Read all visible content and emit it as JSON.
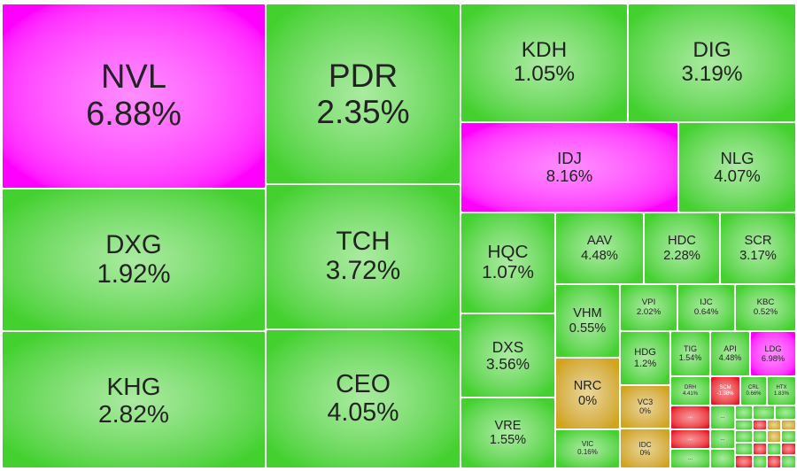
{
  "tiles": [
    {
      "symbol": "NVL",
      "change": "6.88%",
      "color": "#ff00ff"
    },
    {
      "symbol": "PDR",
      "change": "2.35%",
      "color": "#44d12f"
    },
    {
      "symbol": "KDH",
      "change": "1.05%",
      "color": "#44d12f"
    },
    {
      "symbol": "DIG",
      "change": "3.19%",
      "color": "#44d12f"
    },
    {
      "symbol": "IDJ",
      "change": "8.16%",
      "color": "#ff00ff"
    },
    {
      "symbol": "NLG",
      "change": "4.07%",
      "color": "#44d12f"
    },
    {
      "symbol": "DXG",
      "change": "1.92%",
      "color": "#44d12f"
    },
    {
      "symbol": "TCH",
      "change": "3.72%",
      "color": "#44d12f"
    },
    {
      "symbol": "HQC",
      "change": "1.07%",
      "color": "#44d12f"
    },
    {
      "symbol": "AAV",
      "change": "4.48%",
      "color": "#44d12f"
    },
    {
      "symbol": "HDC",
      "change": "2.28%",
      "color": "#44d12f"
    },
    {
      "symbol": "SCR",
      "change": "3.17%",
      "color": "#44d12f"
    },
    {
      "symbol": "VHM",
      "change": "0.55%",
      "color": "#44d12f"
    },
    {
      "symbol": "VPI",
      "change": "2.02%",
      "color": "#44d12f"
    },
    {
      "symbol": "IJC",
      "change": "0.64%",
      "color": "#44d12f"
    },
    {
      "symbol": "KBC",
      "change": "0.52%",
      "color": "#44d12f"
    },
    {
      "symbol": "KHG",
      "change": "2.82%",
      "color": "#44d12f"
    },
    {
      "symbol": "CEO",
      "change": "4.05%",
      "color": "#44d12f"
    },
    {
      "symbol": "DXS",
      "change": "3.56%",
      "color": "#44d12f"
    },
    {
      "symbol": "HDG",
      "change": "1.2%",
      "color": "#44d12f"
    },
    {
      "symbol": "TIG",
      "change": "1.54%",
      "color": "#44d12f"
    },
    {
      "symbol": "API",
      "change": "4.48%",
      "color": "#44d12f"
    },
    {
      "symbol": "LDG",
      "change": "6.98%",
      "color": "#ff00ff"
    },
    {
      "symbol": "NRC",
      "change": "0%",
      "color": "#d1a51a"
    },
    {
      "symbol": "DRH",
      "change": "4.41%",
      "color": "#44d12f"
    },
    {
      "symbol": "SCM",
      "change": "-1.38%",
      "color": "#e8152b"
    },
    {
      "symbol": "CRL",
      "change": "0.66%",
      "color": "#44d12f"
    },
    {
      "symbol": "HTX",
      "change": "1.83%",
      "color": "#44d12f"
    },
    {
      "symbol": "VRE",
      "change": "1.55%",
      "color": "#44d12f"
    },
    {
      "symbol": "VC3",
      "change": "0%",
      "color": "#d1a51a"
    },
    {
      "symbol": "VIC",
      "change": "0.16%",
      "color": "#44d12f"
    },
    {
      "symbol": "IDC",
      "change": "0%",
      "color": "#d1a51a"
    },
    {
      "symbol": "...",
      "color": "#e8152b"
    },
    {
      "symbol": "...",
      "color": "#44d12f"
    },
    {
      "symbol": "...",
      "color": "#e8152b"
    },
    {
      "symbol": "...",
      "color": "#44d12f"
    },
    {
      "symbol": "...",
      "color": "#44d12f"
    }
  ]
}
